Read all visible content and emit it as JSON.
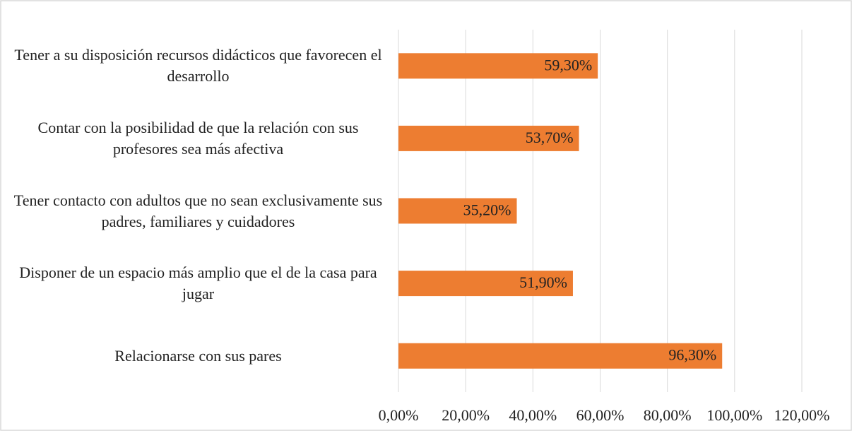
{
  "chart_data": {
    "type": "hbar",
    "categories": [
      "Tener a su disposición recursos didácticos que favorecen el desarrollo",
      "Contar con la posibilidad de que la relación con sus profesores sea más afectiva",
      "Tener contacto con adultos que no sean exclusivamente sus padres, familiares y cuidadores",
      "Disponer de un espacio más amplio que el de la casa para jugar",
      "Relacionarse con sus pares"
    ],
    "values": [
      59.3,
      53.7,
      35.2,
      51.9,
      96.3
    ],
    "value_labels": [
      "59,30%",
      "53,70%",
      "35,20%",
      "51,90%",
      "96,30%"
    ],
    "color": "#ed7d31",
    "xlim": [
      0,
      120
    ],
    "xticks": [
      {
        "value": 0,
        "label": "0,00%"
      },
      {
        "value": 20,
        "label": "20,00%"
      },
      {
        "value": 40,
        "label": "40,00%"
      },
      {
        "value": 60,
        "label": "60,00%"
      },
      {
        "value": 80,
        "label": "80,00%"
      },
      {
        "value": 100,
        "label": "100,00%"
      },
      {
        "value": 120,
        "label": "120,00%"
      }
    ],
    "grid": true
  }
}
